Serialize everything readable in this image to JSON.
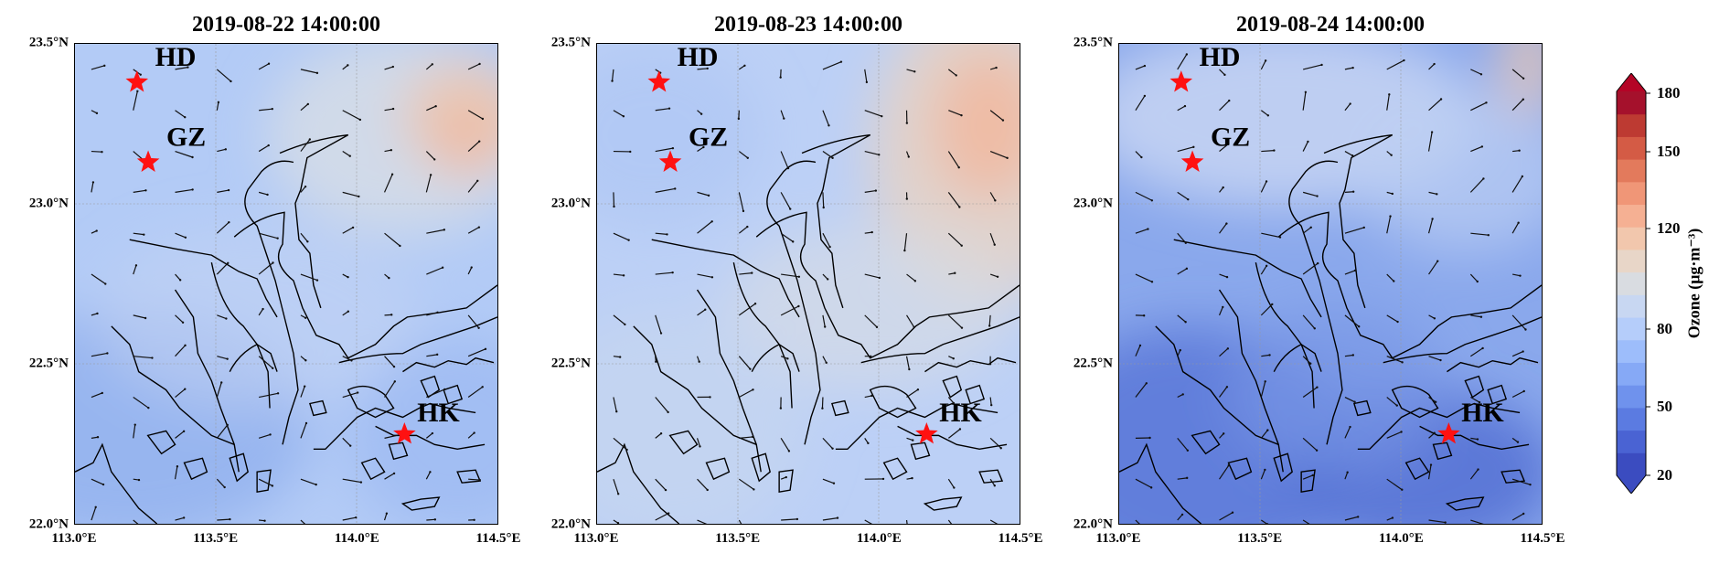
{
  "panels": [
    {
      "title": "2019-08-22 14:00:00",
      "variant": "day1"
    },
    {
      "title": "2019-08-23 14:00:00",
      "variant": "day2"
    },
    {
      "title": "2019-08-24 14:00:00",
      "variant": "day3"
    }
  ],
  "axes": {
    "lat_ticks": [
      "23.5°N",
      "23.0°N",
      "22.5°N",
      "22.0°N"
    ],
    "lon_ticks": [
      "113.0°E",
      "113.5°E",
      "114.0°E",
      "114.5°E"
    ],
    "lat_range": [
      22.0,
      23.5
    ],
    "lon_range": [
      113.0,
      114.5
    ]
  },
  "sites": [
    {
      "name": "HD",
      "lat": 23.38,
      "lon": 113.22
    },
    {
      "name": "GZ",
      "lat": 23.13,
      "lon": 113.26
    },
    {
      "name": "HK",
      "lat": 22.28,
      "lon": 114.17
    }
  ],
  "colorbar": {
    "label": "Ozone (μg·m⁻³)",
    "ticks": [
      "180",
      "150",
      "120",
      "80",
      "50",
      "20"
    ],
    "colors": [
      "#3b4cc0",
      "#4a63d3",
      "#5b7be1",
      "#6f92ed",
      "#86a9f6",
      "#9dbdfb",
      "#b5cdfa",
      "#c8d7f2",
      "#d9dce1",
      "#e8d6c8",
      "#f2c7ad",
      "#f5b093",
      "#f09677",
      "#e37a5c",
      "#d45b45",
      "#bd3a32",
      "#a5112c"
    ],
    "min_color": "#3b4cc0",
    "max_color": "#b40426"
  }
}
